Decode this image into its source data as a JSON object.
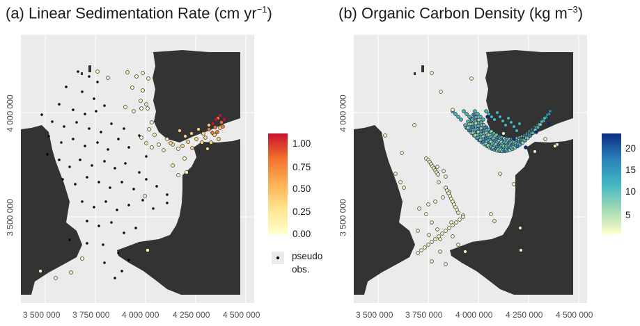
{
  "panel_a": {
    "title_text": "(a) Linear Sedimentation Rate (cm yr",
    "title_sup": "−1",
    "title_close": ")",
    "x_ticks": [
      "3 500 000",
      "3 750 000",
      "4 000 000",
      "4 250 000",
      "4 500 000"
    ],
    "y_ticks": [
      "3 500 000",
      "4 000 000"
    ],
    "legend": {
      "ticks": [
        "1.00",
        "0.75",
        "0.50",
        "0.25",
        "0.00"
      ],
      "colors": [
        "#c8102e",
        "#f3732d",
        "#fdb053",
        "#fee690",
        "#ffffcc"
      ],
      "pseudo_label_1": "pseudo",
      "pseudo_label_2": "obs."
    }
  },
  "panel_b": {
    "title_text": "(b) Organic Carbon Density (kg m",
    "title_sup": "−3",
    "title_close": ")",
    "x_ticks": [
      "3 500 000",
      "3 750 000",
      "4 000 000",
      "4 250 000",
      "4 500 000"
    ],
    "y_ticks": [
      "3 500 000",
      "4 000 000"
    ],
    "legend": {
      "ticks": [
        "20",
        "15",
        "10",
        "5"
      ],
      "colors": [
        "#0c2c84",
        "#2a80b8",
        "#41b6c4",
        "#a1dab4",
        "#ffffcc"
      ]
    }
  },
  "colors": {
    "land": "#333333",
    "sea": "#ebebeb",
    "grid": "#ffffff"
  }
}
